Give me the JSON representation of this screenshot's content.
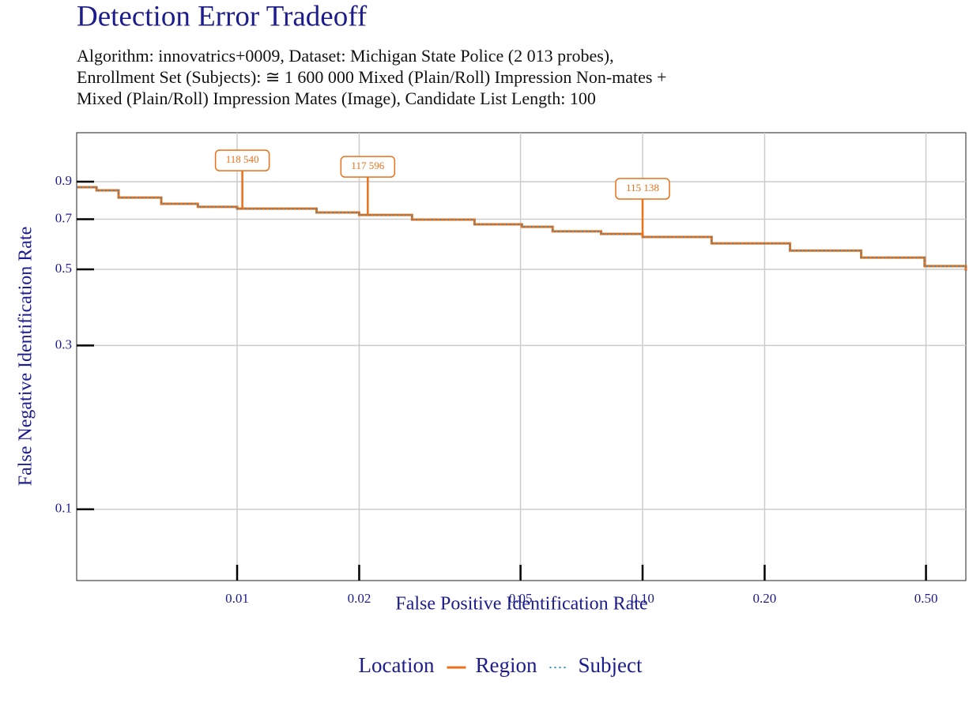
{
  "chart_data": {
    "type": "step",
    "title": "Detection Error Tradeoff",
    "subtitle": [
      "Algorithm: innovatrics+0009, Dataset: Michigan State Police (2 013 probes),",
      "Enrollment Set (Subjects): ≅ 1 600 000 Mixed (Plain/Roll) Impression Non-mates +",
      "Mixed (Plain/Roll) Impression Mates (Image), Candidate List Length: 100"
    ],
    "x_label": "False Positive Identification Rate",
    "y_label": "False Negative Identification Rate",
    "xscale": "log",
    "yscale": "log",
    "grid": true,
    "xlim": [
      0.00402,
      0.627
    ],
    "ylim": [
      0.062,
      1.25
    ],
    "xticks": [
      0.01,
      0.02,
      0.05,
      {
        "value": 0.1,
        "label": "0.10"
      },
      {
        "value": 0.2,
        "label": "0.20"
      },
      {
        "value": 0.5,
        "label": "0.50"
      }
    ],
    "yticks": [
      0.1,
      0.3,
      0.5,
      0.7,
      0.9
    ],
    "x": [
      0.00402,
      0.0045,
      0.0051,
      0.0065,
      0.008,
      0.01,
      0.0157,
      0.02,
      0.027,
      0.0385,
      0.0504,
      0.06,
      0.079,
      0.1,
      0.148,
      0.231,
      0.346,
      0.496,
      0.627
    ],
    "series": [
      {
        "name": "Region",
        "color": "#e8711a",
        "dash": "solid",
        "values": [
          0.867,
          0.849,
          0.809,
          0.776,
          0.76,
          0.751,
          0.732,
          0.72,
          0.698,
          0.676,
          0.665,
          0.645,
          0.634,
          0.621,
          0.595,
          0.567,
          0.541,
          0.511,
          0.495
        ]
      },
      {
        "name": "Subject",
        "color": "#2a8fc4",
        "dash": "dotted",
        "values": [
          0.867,
          0.849,
          0.809,
          0.776,
          0.76,
          0.751,
          0.732,
          0.72,
          0.698,
          0.676,
          0.665,
          0.645,
          0.634,
          0.621,
          0.595,
          0.567,
          0.541,
          0.511,
          0.495
        ]
      }
    ],
    "annotations": [
      {
        "text": "118 540",
        "x": 0.0103,
        "y": 0.751
      },
      {
        "text": "117 596",
        "x": 0.021,
        "y": 0.72
      },
      {
        "text": "115 138",
        "x": 0.1,
        "y": 0.621
      }
    ],
    "legend_title": "Location",
    "legend_position": "bottom"
  }
}
